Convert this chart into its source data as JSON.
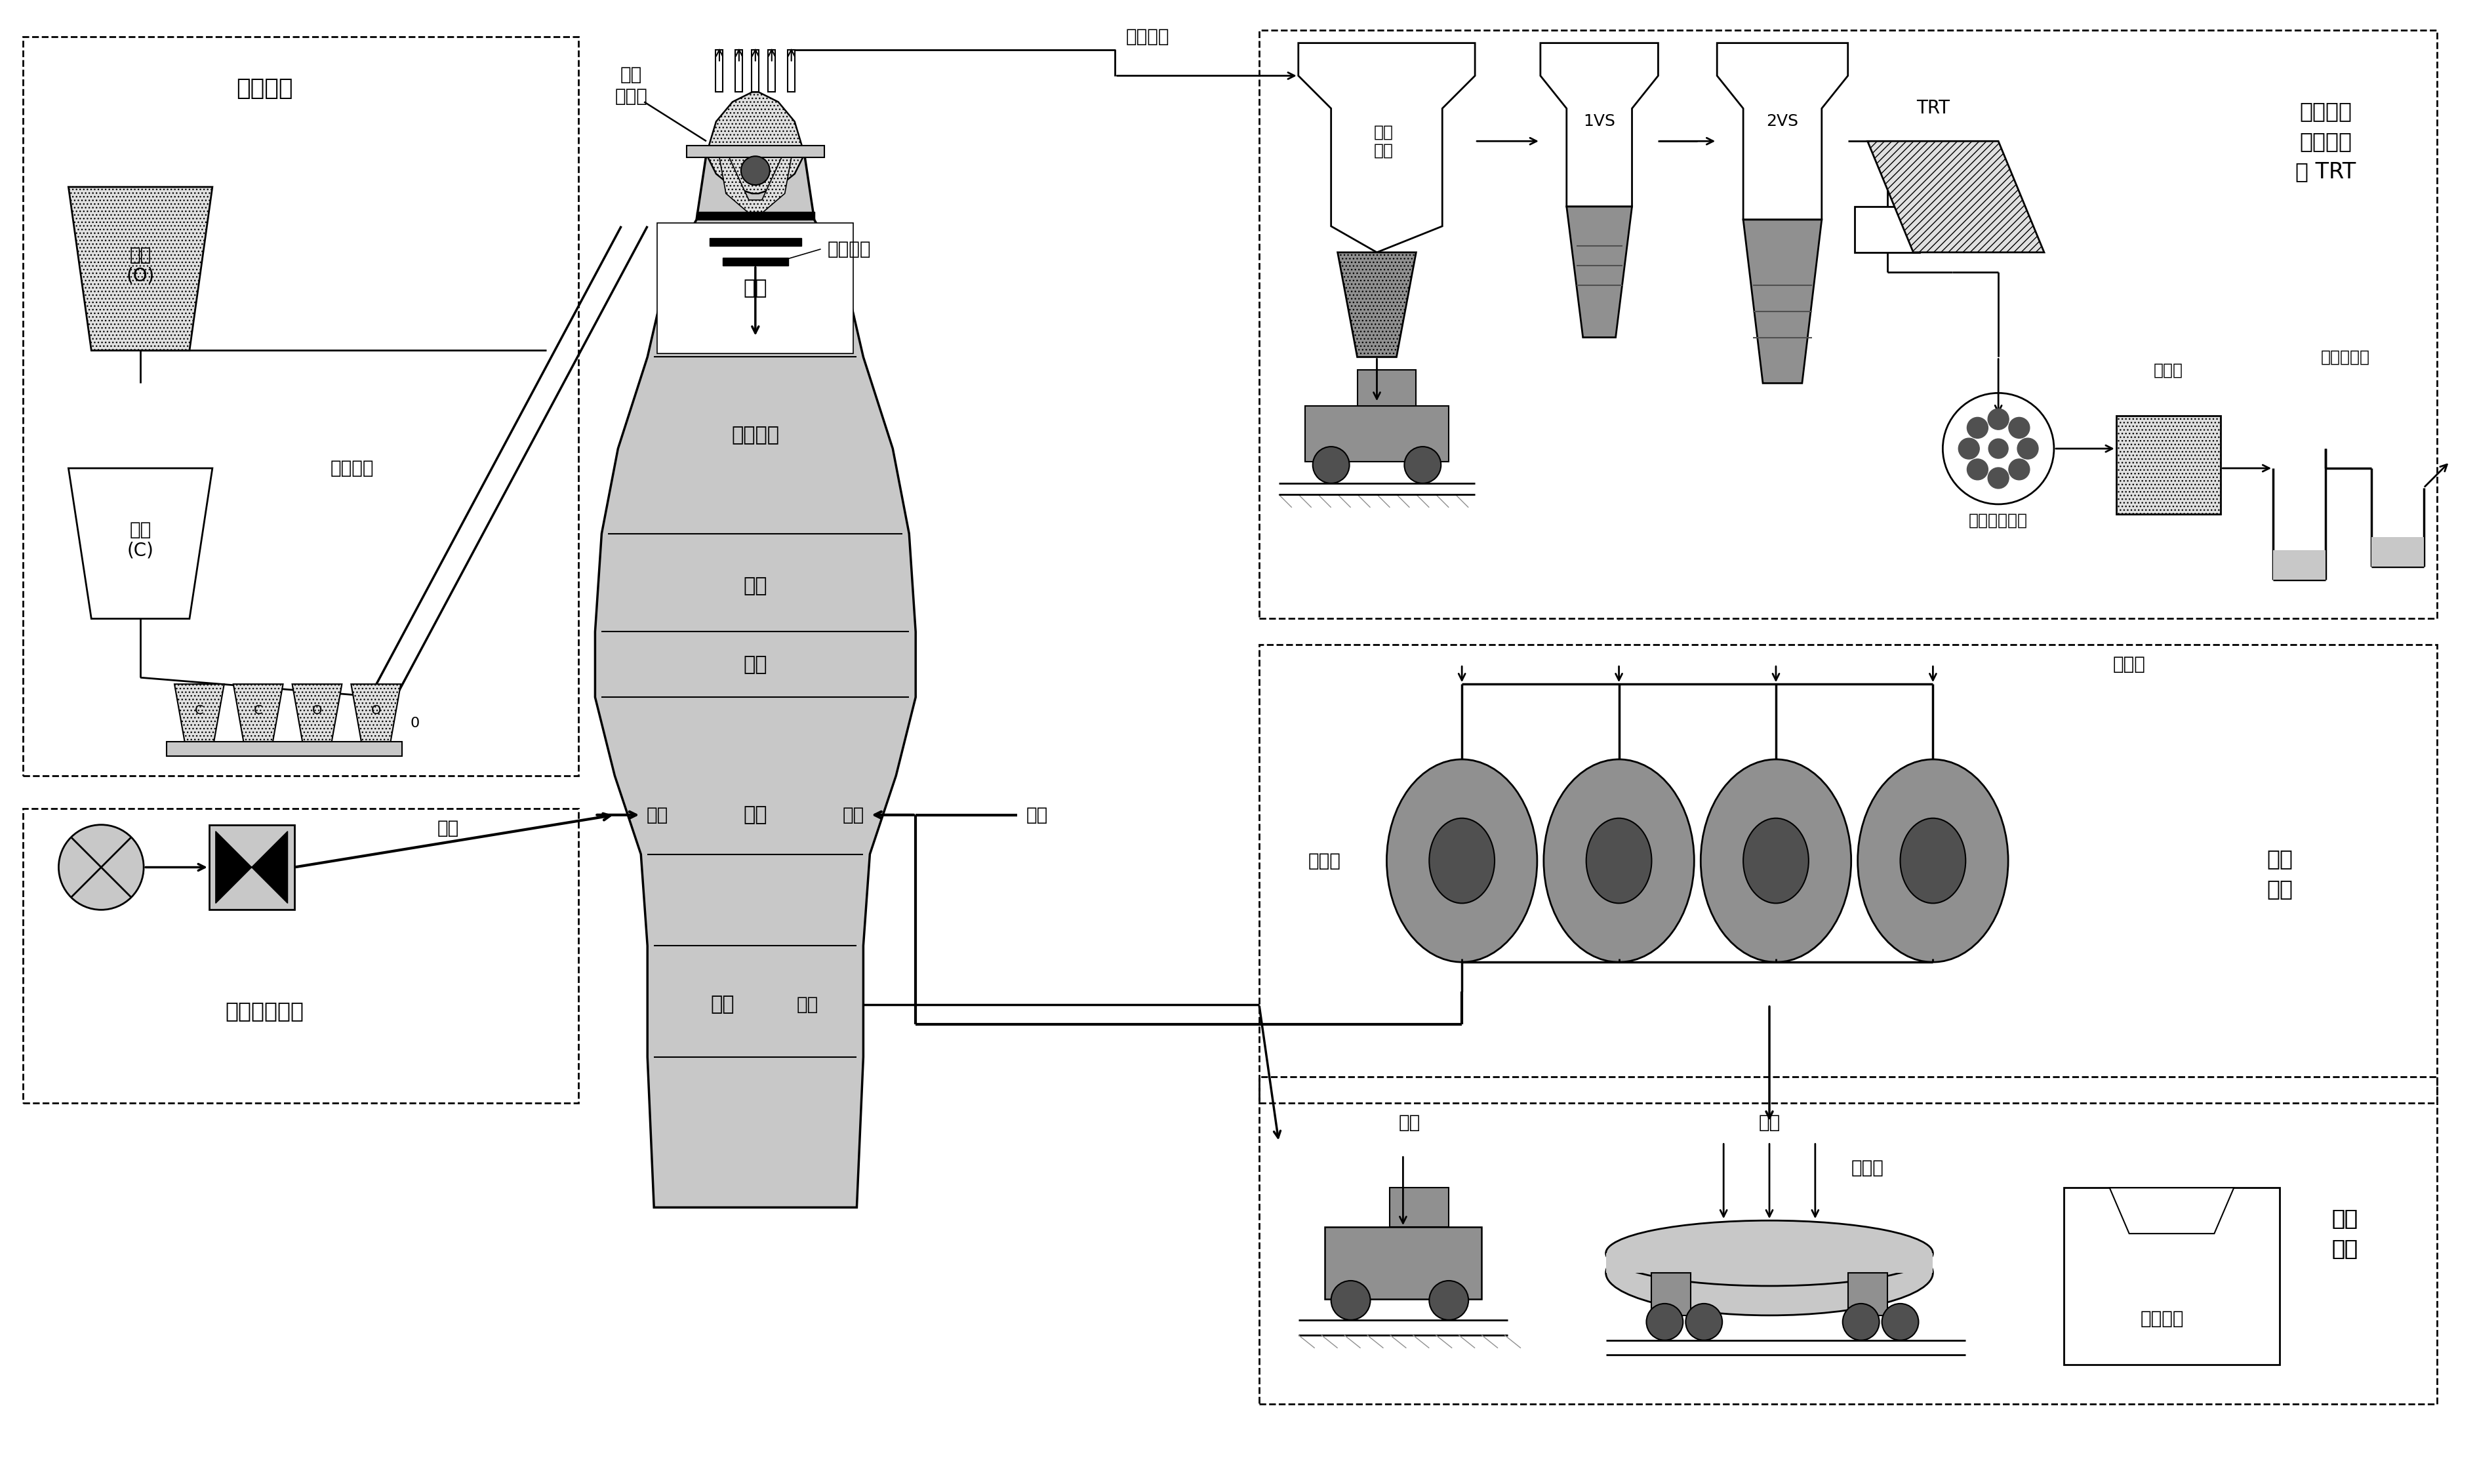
{
  "bg_color": "#ffffff",
  "gray_light": "#c8c8c8",
  "gray_medium": "#909090",
  "gray_dark": "#505050",
  "dotted_fill": "#e0e0e0",
  "fig_width": 37.77,
  "fig_height": 22.63,
  "labels": {
    "supply_system": "供料系统",
    "ore": "矿石\n(O)",
    "coke": "焦炭\n(C)",
    "conveyor": "输送皮带",
    "furnace_top": "炉顶装料",
    "throat": "炉喉",
    "body": "高炉本体",
    "shaft": "炉身",
    "belly": "炉腰",
    "bosh": "炉腹",
    "hearth": "炉缸",
    "tuyere": "风口",
    "iron_notch": "铁口",
    "coal_powder": "煤粉",
    "coal_injection": "煤粉喷吹系统",
    "hot_blast": "热风",
    "ore_coke": "矿石\n与焦炭",
    "bf_gas": "高炉煤气",
    "gas_system": "高炉煤气\n处理系统\n及 TRT",
    "gravity_dust": "重力\n除尘",
    "pressure_valve": "压力调节阀组",
    "silencer": "消声器",
    "water_seal": "水密封装置",
    "TRT": "TRT",
    "hot_stove": "热风炉",
    "cold_air": "冷空气",
    "hot_blast_system": "热风\n系统",
    "slag": "炉渣",
    "molten_iron": "铁水",
    "torpedo_car": "鱼雷车",
    "desili": "脱硅设备",
    "iron_system": "出铁\n系统",
    "label_0": "0",
    "label_1vs": "1VS",
    "label_2vs": "2VS"
  }
}
